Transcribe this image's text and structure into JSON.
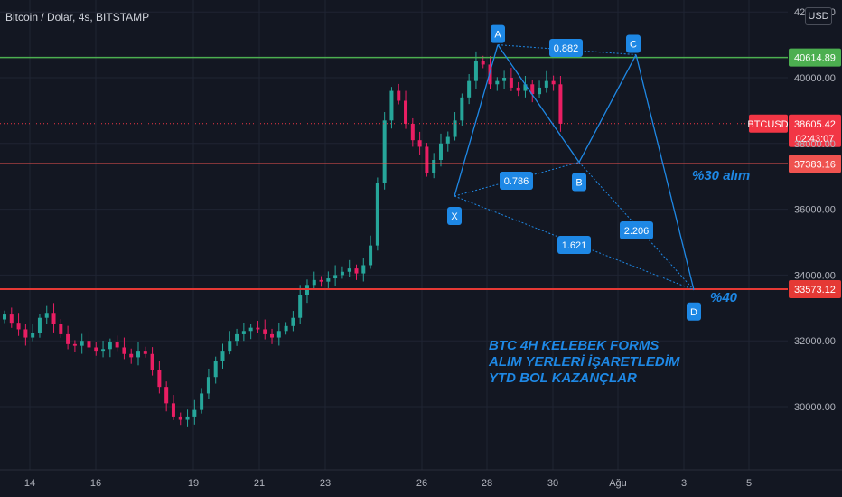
{
  "header": {
    "symbol_title": "Bitcoin / Dolar, 4s, BITSTAMP",
    "currency": "USD"
  },
  "colors": {
    "background": "#131722",
    "up_candle": "#26a69a",
    "down_candle": "#e91e63",
    "pattern_blue": "#1e88e5",
    "hline_green": "#4caf50",
    "hline_orange": "#ef5350",
    "hline_red": "#e53935",
    "price_tag_red": "#f23645"
  },
  "chart_data": {
    "type": "candlestick",
    "y_axis_ticks": [
      30000,
      32000,
      34000,
      36000,
      38000,
      40000,
      42000
    ],
    "y_tick_labels": [
      "30000.00",
      "32000.00",
      "34000.00",
      "36000.00",
      "38000.00",
      "40000.00",
      "42000.00"
    ],
    "x_tick_labels": [
      "14",
      "16",
      "19",
      "21",
      "23",
      "26",
      "28",
      "30",
      "Ağu",
      "3",
      "5"
    ],
    "ylim": [
      29100,
      42400
    ],
    "horizontal_levels": [
      {
        "price": 40614.89,
        "label": "40614.89",
        "color": "green"
      },
      {
        "price": 37383.16,
        "label": "37383.16",
        "color": "orange"
      },
      {
        "price": 33573.12,
        "label": "33573.12",
        "color": "red"
      }
    ],
    "current_price": {
      "symbol": "BTCUSD",
      "price": 38605.42,
      "label": "38605.42",
      "countdown": "02:43:07"
    },
    "harmonic_points": [
      {
        "label": "X",
        "price": 36400
      },
      {
        "label": "A",
        "price": 41000
      },
      {
        "label": "B",
        "price": 37430
      },
      {
        "label": "C",
        "price": 40700
      },
      {
        "label": "D",
        "price": 33550
      }
    ],
    "ratios": [
      "0.882",
      "0.786",
      "1.621",
      "2.206"
    ],
    "annotations": {
      "buy_30": "%30 alım",
      "level_40": "%40",
      "note_lines": [
        "BTC 4H KELEBEK FORMS",
        "ALIM YERLERİ İŞARETLEDİM",
        "YTD BOL KAZANÇLAR"
      ]
    },
    "price_path": [
      32800,
      32550,
      32350,
      32100,
      32250,
      32700,
      32850,
      32500,
      32200,
      31900,
      31850,
      32000,
      31800,
      31700,
      31750,
      31950,
      31800,
      31600,
      31500,
      31700,
      31600,
      31100,
      30600,
      30100,
      29700,
      29600,
      29700,
      29900,
      30400,
      30900,
      31400,
      31700,
      32000,
      32200,
      32300,
      32400,
      32350,
      32200,
      32100,
      32300,
      32450,
      32700,
      33400,
      33700,
      33850,
      33800,
      33900,
      34000,
      34100,
      34200,
      34050,
      34300,
      34900,
      36800,
      38700,
      39600,
      39300,
      38600,
      38100,
      37900,
      37100,
      37500,
      38000,
      38200,
      38700,
      39400,
      39900,
      40500,
      40400,
      39800,
      39900,
      40000,
      39700,
      39600,
      39800,
      39500,
      39700,
      39900,
      39800,
      38600
    ]
  }
}
